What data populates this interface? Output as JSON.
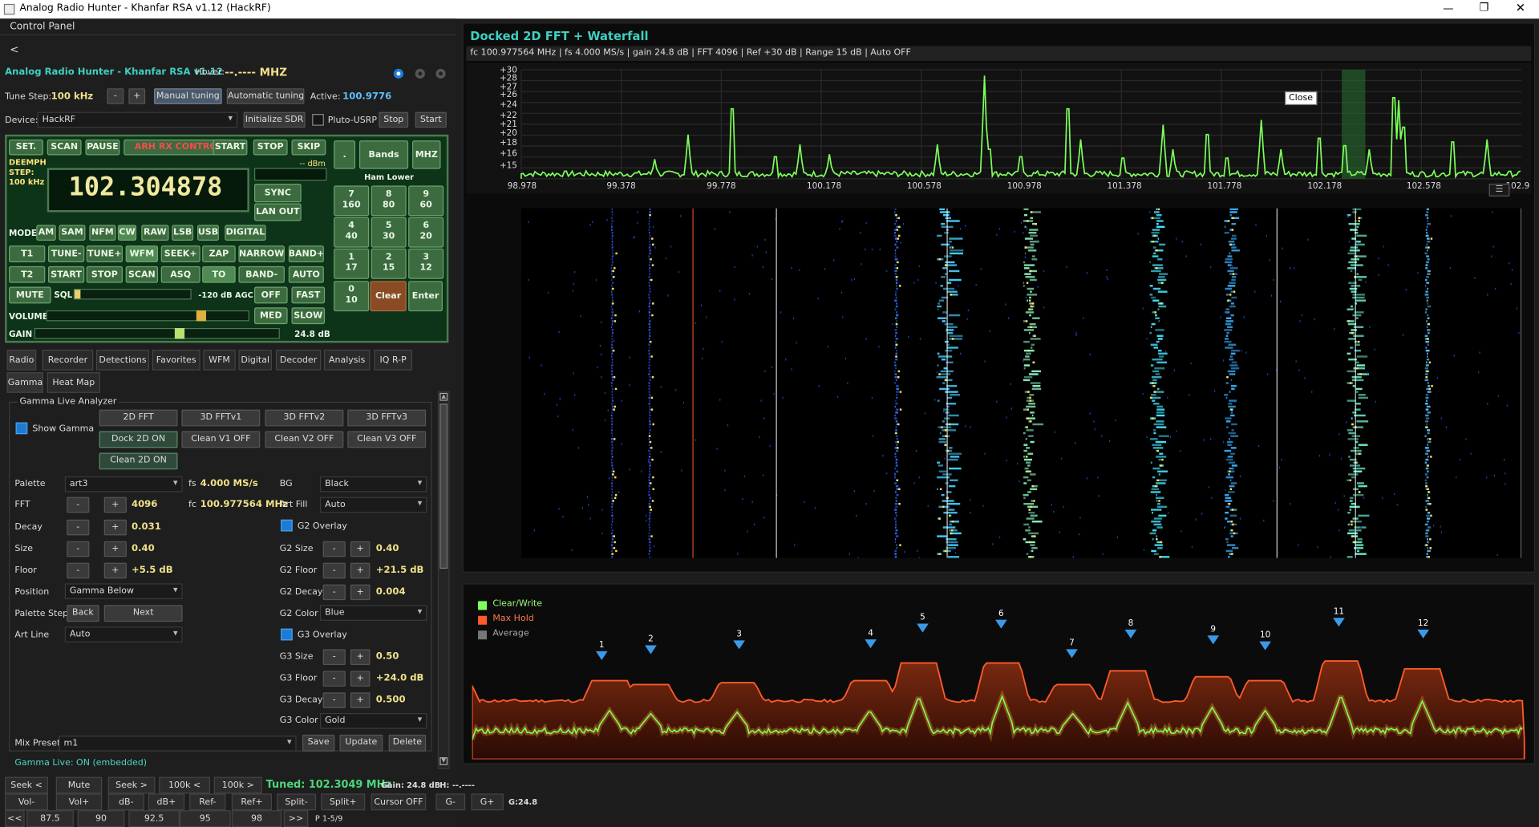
{
  "window": {
    "title": "Analog Radio Hunter - Khanfar RSA v1.12 (HackRF)"
  },
  "left": {
    "panel_title": "Control Panel",
    "back": "<",
    "app_label": "Analog Radio Hunter - Khanfar RSA v1.12",
    "hover_label": "Hover:",
    "hover_value": "--.---- MHZ",
    "tune_step_label": "Tune Step:",
    "tune_step_value": "100 kHz",
    "minus": "-",
    "plus": "+",
    "manual": "Manual tuning",
    "automatic": "Automatic tuning",
    "active_label": "Active:",
    "active_value": "100.9776",
    "device_label": "Device:",
    "device_value": "HackRF",
    "init_sdr": "Initialize SDR",
    "pluto": "Pluto-USRP",
    "stop": "Stop",
    "start": "Start"
  },
  "radio": {
    "top_buttons": [
      "SET.",
      "SCAN",
      "PAUSE",
      "ARH RX CONTROL",
      "START",
      "STOP",
      "SKIP"
    ],
    "deemph": "DEEMPH",
    "step": "STEP:",
    "step_val": "100 kHz",
    "dbm": "-- dBm",
    "frequency": "102.304878",
    "sync": "SYNC",
    "lanout": "LAN OUT",
    "dot": ".",
    "bands": "Bands",
    "mhz": "MHZ",
    "ham": "Ham Lower",
    "keypad": [
      [
        "7",
        "160"
      ],
      [
        "8",
        "80"
      ],
      [
        "9",
        "60"
      ],
      [
        "4",
        "40"
      ],
      [
        "5",
        "30"
      ],
      [
        "6",
        "20"
      ],
      [
        "1",
        "17"
      ],
      [
        "2",
        "15"
      ],
      [
        "3",
        "12"
      ],
      [
        "0",
        "10"
      ]
    ],
    "clear": "Clear",
    "enter": "Enter",
    "mode": "MODE",
    "modes": [
      "AM",
      "SAM",
      "NFM",
      "CW",
      "RAW",
      "LSB",
      "USB",
      "DIGITAL"
    ],
    "row1": [
      "T1",
      "TUNE-",
      "TUNE+",
      "WFM",
      "SEEK+",
      "ZAP",
      "NARROW",
      "BAND+"
    ],
    "row2": [
      "T2",
      "START",
      "STOP",
      "SCAN",
      "ASQ",
      "TO",
      "BAND-",
      "AUTO"
    ],
    "mute": "MUTE",
    "sql": "SQL",
    "agc": "-120 dB AGC",
    "off": "OFF",
    "fast": "FAST",
    "volume": "VOLUME",
    "med": "MED",
    "gain": "GAIN",
    "slow": "SLOW",
    "gain_val": "24.8 dB",
    "sql_level": 0.02,
    "volume_level": 0.77,
    "gain_level": 0.59
  },
  "tabs1": [
    "Radio",
    "Recorder",
    "Detections",
    "Favorites",
    "WFM",
    "Digital",
    "Decoder",
    "Analysis",
    "IQ R-P"
  ],
  "tabs2": [
    "Gamma",
    "Heat Map"
  ],
  "gamma": {
    "group": "Gamma Live Analyzer",
    "show_gamma": "Show Gamma",
    "b1": [
      "2D FFT",
      "3D FFTv1",
      "3D FFTv2",
      "3D FFTv3"
    ],
    "b2": [
      "Dock 2D ON",
      "Clean V1 OFF",
      "Clean V2 OFF",
      "Clean V3 OFF"
    ],
    "b3": "Clean 2D ON",
    "palette_l": "Palette",
    "palette_v": "art3",
    "fs_l": "fs",
    "fs_v": "4.000 MS/s",
    "bg_l": "BG",
    "bg_v": "Black",
    "fft_l": "FFT",
    "fft_v": "4096",
    "fc_l": "fc",
    "fc_v": "100.977564 MHz",
    "artfill_l": "Art Fill",
    "artfill_v": "Auto",
    "decay_l": "Decay",
    "decay_v": "0.031",
    "g2o": "G2 Overlay",
    "size_l": "Size",
    "size_v": "0.40",
    "g2size_l": "G2 Size",
    "g2size_v": "0.40",
    "floor_l": "Floor",
    "floor_v": "+5.5 dB",
    "g2floor_l": "G2 Floor",
    "g2floor_v": "+21.5 dB",
    "position_l": "Position",
    "position_v": "Gamma Below",
    "g2decay_l": "G2 Decay",
    "g2decay_v": "0.004",
    "pstep_l": "Palette Step",
    "back": "Back",
    "next": "Next",
    "g2color_l": "G2 Color",
    "g2color_v": "Blue",
    "artline_l": "Art Line",
    "artline_v": "Auto",
    "g3o": "G3 Overlay",
    "g3size_l": "G3 Size",
    "g3size_v": "0.50",
    "g3floor_l": "G3 Floor",
    "g3floor_v": "+24.0 dB",
    "g3decay_l": "G3 Decay",
    "g3decay_v": "0.500",
    "g3color_l": "G3 Color",
    "g3color_v": "Gold",
    "mix_l": "Mix Preset",
    "mix_v": "m1",
    "save": "Save",
    "update": "Update",
    "delete": "Delete",
    "status": "Gamma Live: ON (embedded)"
  },
  "bottom": {
    "r1": [
      "Seek <",
      "Mute",
      "Seek >",
      "100k <",
      "100k >"
    ],
    "tuned": "Tuned: 102.3049 MHz",
    "gain": "Gain: 24.8 dB",
    "h": "H: --.----",
    "r2": [
      "Vol-",
      "Vol+",
      "dB-",
      "dB+",
      "Ref-",
      "Ref+",
      "Split-",
      "Split+",
      "Cursor OFF",
      "G-",
      "G+"
    ],
    "g": "G:24.8",
    "r3": [
      "<<",
      "87.5",
      "90",
      "92.5",
      "95",
      "98",
      ">>"
    ],
    "page": "P 1-5/9"
  },
  "fft": {
    "title": "Docked 2D FFT + Waterfall",
    "info": "fc 100.977564 MHz | fs 4.000 MS/s | gain 24.8 dB | FFT 4096 | Ref +30 dB | Range 15 dB | Auto OFF",
    "ylabels": [
      "+30",
      "+28",
      "+27",
      "+26",
      "+24",
      "+22",
      "+21",
      "+20",
      "+18",
      "+16",
      "+15"
    ],
    "xlabels": [
      "98.978",
      "99.378",
      "99.778",
      "100.178",
      "100.578",
      "100.978",
      "101.378",
      "101.778",
      "102.178",
      "102.578",
      "102.9"
    ],
    "tooltip": "Close"
  },
  "gammaplot": {
    "legend": [
      "Clear/Write",
      "Max Hold",
      "Average"
    ],
    "markers": [
      "1",
      "2",
      "3",
      "4",
      "5",
      "6",
      "7",
      "8",
      "9",
      "10",
      "11",
      "12"
    ]
  },
  "chart_data": {
    "type": "line",
    "title": "Docked 2D FFT + Waterfall",
    "ylim": [
      15,
      30
    ],
    "xlim": [
      98.978,
      102.978
    ],
    "x": [
      98.978,
      99.378,
      99.778,
      100.178,
      100.578,
      100.978,
      101.378,
      101.778,
      102.178,
      102.578
    ]
  },
  "colors": {
    "accent": "#3fd0c0",
    "green": "#7cff5a",
    "orange": "#ff5a2a",
    "panel_green": "#3c6b3f",
    "freq": "#f2e9a0"
  }
}
